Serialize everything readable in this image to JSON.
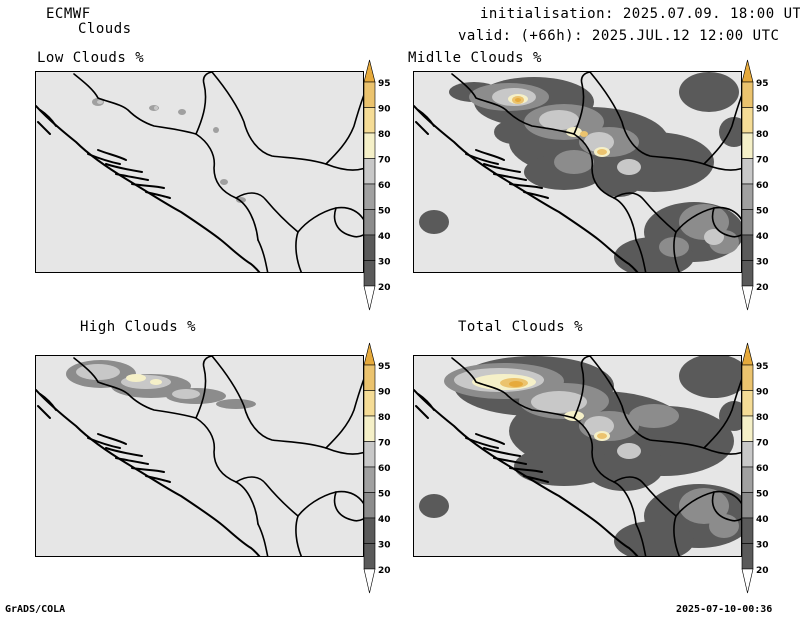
{
  "header": {
    "model": "ECMWF",
    "product": "Clouds",
    "initialisation": "initialisation: 2025.07.09. 18:00 UTC",
    "valid": "valid: (+66h): 2025.JUL.12 12:00 UTC"
  },
  "panels": [
    {
      "id": "low",
      "title": "Low Clouds %"
    },
    {
      "id": "middle",
      "title": "Midlle Clouds %"
    },
    {
      "id": "high",
      "title": "High Clouds %"
    },
    {
      "id": "total",
      "title": "Total Clouds %"
    }
  ],
  "colorbar": {
    "levels": [
      "20",
      "30",
      "40",
      "50",
      "60",
      "70",
      "80",
      "90",
      "95"
    ],
    "colors": {
      "lt20": "#ffffff",
      "20-30": "#5a5a5a",
      "30-40": "#5a5a5a",
      "40-50": "#8c8c8c",
      "50-60": "#a0a0a0",
      "60-70": "#c8c8c8",
      "70-80": "#f5f0c8",
      "80-90": "#f5dc96",
      "90-95": "#ebc36e",
      "gt95": "#e6aa3c"
    }
  },
  "colors": {
    "background": "#e6e6e6",
    "border": "#000000"
  },
  "footer": {
    "left": "GrADS/COLA",
    "right": "2025-07-10-00:36"
  }
}
